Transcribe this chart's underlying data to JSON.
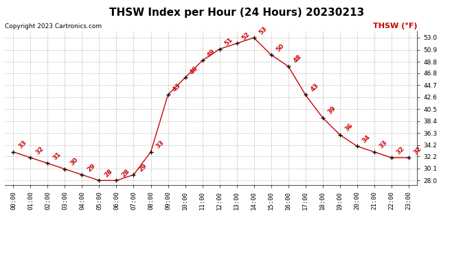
{
  "title": "THSW Index per Hour (24 Hours) 20230213",
  "copyright": "Copyright 2023 Cartronics.com",
  "legend_label": "THSW (°F)",
  "hours": [
    0,
    1,
    2,
    3,
    4,
    5,
    6,
    7,
    8,
    9,
    10,
    11,
    12,
    13,
    14,
    15,
    16,
    17,
    18,
    19,
    20,
    21,
    22,
    23
  ],
  "values": [
    33,
    32,
    31,
    30,
    29,
    28,
    28,
    29,
    33,
    43,
    46,
    49,
    51,
    52,
    53,
    50,
    48,
    43,
    39,
    36,
    34,
    33,
    32,
    32
  ],
  "y_ticks": [
    28.0,
    30.1,
    32.2,
    34.2,
    36.3,
    38.4,
    40.5,
    42.6,
    44.7,
    46.8,
    48.8,
    50.9,
    53.0
  ],
  "ylim": [
    27.2,
    54.2
  ],
  "line_color": "#cc0000",
  "marker_color": "#000000",
  "grid_color": "#bbbbbb",
  "background_color": "#ffffff",
  "title_fontsize": 11,
  "copyright_fontsize": 6.5,
  "label_fontsize": 6.5,
  "tick_fontsize": 6.5,
  "legend_fontsize": 8
}
